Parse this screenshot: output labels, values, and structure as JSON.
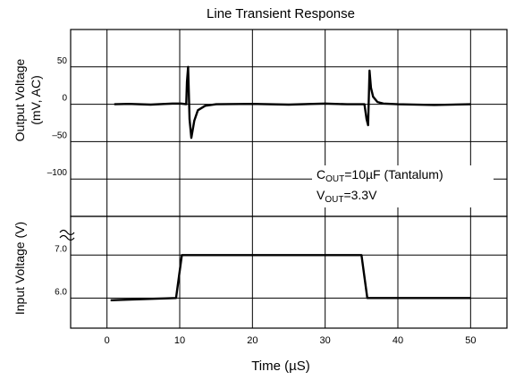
{
  "chart_data": {
    "type": "line",
    "title": "Line Transient Response",
    "xlabel": "Time (µS)",
    "xlim": [
      -5,
      55
    ],
    "x_ticks": [
      "0",
      "10",
      "20",
      "30",
      "40",
      "50"
    ],
    "grid": true,
    "panels": [
      {
        "name": "output",
        "ylabel_line1": "Output Voltage",
        "ylabel_line2": "(mV, AC)",
        "ylim": [
          -150,
          100
        ],
        "y_ticks": [
          {
            "value": 50,
            "label": "50"
          },
          {
            "value": 0,
            "label": "0"
          },
          {
            "value": -50,
            "label": "–50"
          },
          {
            "value": -100,
            "label": "–100"
          }
        ],
        "series": [
          {
            "x": [
              1,
              3,
              6,
              9,
              10.2,
              10.9,
              11.0,
              11.15,
              11.35,
              11.6,
              12.0,
              12.5,
              13.5,
              15,
              20,
              25,
              30,
              33,
              35.4,
              35.7,
              35.9,
              36.1,
              36.3,
              36.6,
              37.2,
              38,
              40,
              45,
              50
            ],
            "y": [
              0,
              0.5,
              -0.5,
              1,
              1,
              0,
              30,
              50,
              -20,
              -45,
              -22,
              -8,
              -2,
              0,
              0.5,
              -0.5,
              1,
              0,
              0,
              -20,
              -28,
              45,
              22,
              10,
              3,
              1,
              0,
              -1,
              0
            ]
          }
        ],
        "annotations": [
          {
            "prefix": "C",
            "sub": "OUT",
            "text": "=10µF (Tantalum)"
          },
          {
            "prefix": "V",
            "sub": "OUT",
            "text": "=3.3V"
          }
        ]
      },
      {
        "name": "input",
        "ylabel": "Input Voltage (V)",
        "ylim": [
          5.3,
          7.9
        ],
        "y_ticks": [
          {
            "value": 7.0,
            "label": "7.0"
          },
          {
            "value": 6.0,
            "label": "6.0"
          }
        ],
        "series": [
          {
            "x": [
              0.5,
              9.5,
              10.3,
              35.0,
              35.8,
              50
            ],
            "y": [
              5.95,
              6.0,
              7.0,
              7.0,
              6.0,
              6.0
            ]
          }
        ]
      }
    ]
  }
}
